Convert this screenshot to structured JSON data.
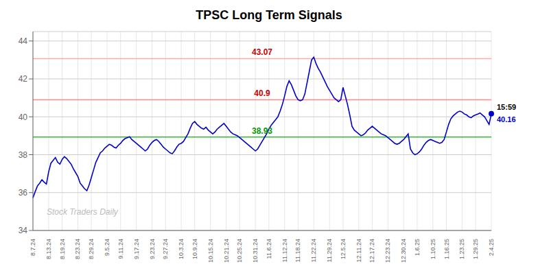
{
  "chart_data": {
    "type": "line",
    "title": "TPSC Long Term Signals",
    "color": "#0000cc",
    "grid": true,
    "ylim": [
      34.0,
      44.5
    ],
    "yticks": [
      34,
      36,
      38,
      40,
      42,
      44
    ],
    "categories": [
      "8.7.24",
      null,
      null,
      null,
      null,
      null,
      null,
      "8.13.24",
      null,
      null,
      null,
      null,
      null,
      "8.19.24",
      null,
      null,
      null,
      null,
      null,
      null,
      "8.23.24",
      null,
      null,
      null,
      null,
      null,
      "8.29.24",
      null,
      null,
      null,
      null,
      null,
      null,
      "9.5.24",
      null,
      null,
      null,
      null,
      null,
      "9.11.24",
      null,
      null,
      null,
      null,
      null,
      null,
      "9.17.24",
      null,
      null,
      null,
      null,
      null,
      null,
      "9.23.24",
      null,
      null,
      null,
      null,
      null,
      "9.27.24",
      null,
      null,
      null,
      null,
      null,
      null,
      "10.3.24",
      null,
      null,
      null,
      null,
      null,
      "10.9.24",
      null,
      null,
      null,
      null,
      null,
      null,
      "10.15.24",
      null,
      null,
      null,
      null,
      null,
      null,
      "10.21.24",
      null,
      null,
      null,
      null,
      null,
      "10.25.24",
      null,
      null,
      null,
      null,
      null,
      null,
      "10.31.24",
      null,
      null,
      null,
      null,
      null,
      "11.6.24",
      null,
      null,
      null,
      null,
      null,
      null,
      "11.12.24",
      null,
      null,
      null,
      null,
      null,
      "11.18.24",
      null,
      null,
      null,
      null,
      null,
      null,
      "11.22.24",
      null,
      null,
      null,
      null,
      null,
      null,
      "11.29.24",
      null,
      null,
      null,
      null,
      null,
      "12.5.24",
      null,
      null,
      null,
      null,
      null,
      null,
      "12.11.24",
      null,
      null,
      null,
      null,
      null,
      "12.17.24",
      null,
      null,
      null,
      null,
      null,
      null,
      "12.23.24",
      null,
      null,
      null,
      null,
      null,
      null,
      "12.30.24",
      null,
      null,
      null,
      null,
      null,
      "1.6.25",
      null,
      null,
      null,
      null,
      null,
      null,
      "1.10.25",
      null,
      null,
      null,
      null,
      null,
      "1.16.25",
      null,
      null,
      null,
      null,
      null,
      null,
      "1.23.25",
      null,
      null,
      null,
      null,
      null,
      "1.29.25",
      null,
      null,
      null,
      null,
      null,
      null,
      "2.4.25"
    ],
    "values": [
      35.72,
      36.05,
      36.35,
      36.5,
      36.68,
      36.55,
      36.45,
      37.1,
      37.55,
      37.7,
      37.85,
      37.6,
      37.5,
      37.75,
      37.9,
      37.8,
      37.65,
      37.5,
      37.25,
      37.05,
      36.85,
      36.5,
      36.35,
      36.2,
      36.1,
      36.4,
      36.8,
      37.2,
      37.6,
      37.85,
      38.1,
      38.2,
      38.35,
      38.45,
      38.55,
      38.5,
      38.4,
      38.35,
      38.5,
      38.6,
      38.75,
      38.85,
      38.9,
      38.95,
      38.8,
      38.7,
      38.6,
      38.5,
      38.4,
      38.3,
      38.2,
      38.3,
      38.5,
      38.65,
      38.75,
      38.8,
      38.7,
      38.55,
      38.4,
      38.3,
      38.2,
      38.1,
      38.05,
      38.2,
      38.4,
      38.55,
      38.6,
      38.7,
      38.9,
      39.1,
      39.4,
      39.65,
      39.75,
      39.6,
      39.5,
      39.4,
      39.35,
      39.45,
      39.3,
      39.2,
      39.1,
      39.2,
      39.35,
      39.45,
      39.55,
      39.65,
      39.5,
      39.35,
      39.2,
      39.1,
      39.05,
      39.0,
      38.9,
      38.8,
      38.7,
      38.6,
      38.5,
      38.4,
      38.3,
      38.2,
      38.3,
      38.5,
      38.7,
      38.9,
      39.1,
      39.35,
      39.55,
      39.7,
      39.85,
      40.0,
      40.3,
      40.65,
      41.1,
      41.6,
      41.9,
      41.7,
      41.4,
      41.1,
      40.9,
      40.85,
      40.9,
      41.2,
      41.8,
      42.4,
      43.0,
      43.15,
      42.8,
      42.55,
      42.35,
      42.1,
      41.85,
      41.6,
      41.4,
      41.2,
      41.0,
      40.9,
      40.8,
      40.9,
      41.55,
      41.1,
      40.65,
      40.1,
      39.5,
      39.3,
      39.2,
      39.1,
      39.0,
      39.05,
      39.15,
      39.3,
      39.4,
      39.5,
      39.4,
      39.3,
      39.2,
      39.1,
      39.05,
      39.0,
      38.9,
      38.8,
      38.7,
      38.6,
      38.55,
      38.6,
      38.7,
      38.8,
      38.95,
      39.1,
      38.3,
      38.1,
      38.0,
      38.05,
      38.15,
      38.3,
      38.5,
      38.65,
      38.75,
      38.8,
      38.75,
      38.7,
      38.65,
      38.6,
      38.65,
      38.8,
      39.2,
      39.6,
      39.9,
      40.05,
      40.15,
      40.25,
      40.3,
      40.25,
      40.15,
      40.1,
      40.0,
      39.95,
      40.05,
      40.1,
      40.15,
      40.2,
      40.1,
      40.0,
      39.8,
      39.6,
      40.16
    ],
    "hlines": [
      {
        "value": 38.93,
        "color": "#33bb33",
        "label": "38.93",
        "label_color": "#009900"
      },
      {
        "value": 40.9,
        "color": "#ff8888",
        "label": "40.9",
        "label_color": "#cc0000"
      },
      {
        "value": 43.07,
        "color": "#ffaaaa",
        "label": "43.07",
        "label_color": "#cc0000"
      }
    ],
    "last_point": {
      "label": "15:59",
      "value": 40.16,
      "color": "#0000cc"
    },
    "watermark": {
      "text": "Stock Traders Daily",
      "color": "#bbbbbb"
    }
  }
}
